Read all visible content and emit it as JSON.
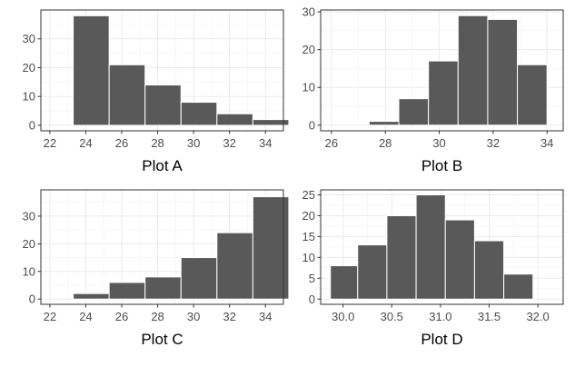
{
  "colors": {
    "bar_fill": "#595959",
    "bar_outline": "#ffffff",
    "panel_border": "#333333",
    "grid": "#ebebeb",
    "background": "#ffffff"
  },
  "chart_data": [
    {
      "type": "bar",
      "xlabel": "Plot A",
      "xlim": [
        21.5,
        35.0
      ],
      "ylim": [
        -1.9,
        40.0
      ],
      "xticks": [
        22,
        24,
        26,
        28,
        30,
        32,
        34
      ],
      "yticks": [
        0,
        10,
        20,
        30
      ],
      "bins": [
        {
          "x0": 23.3,
          "x1": 25.3,
          "count": 38
        },
        {
          "x0": 25.3,
          "x1": 27.3,
          "count": 21
        },
        {
          "x0": 27.3,
          "x1": 29.3,
          "count": 14
        },
        {
          "x0": 29.3,
          "x1": 31.3,
          "count": 8
        },
        {
          "x0": 31.3,
          "x1": 33.3,
          "count": 4
        },
        {
          "x0": 33.3,
          "x1": 35.3,
          "count": 2
        }
      ]
    },
    {
      "type": "bar",
      "xlabel": "Plot B",
      "xlim": [
        25.6,
        34.6
      ],
      "ylim": [
        -1.5,
        30.5
      ],
      "xticks": [
        26,
        28,
        30,
        32,
        34
      ],
      "yticks": [
        0,
        10,
        20,
        30
      ],
      "bins": [
        {
          "x0": 26.2,
          "x1": 27.4,
          "count": 0
        },
        {
          "x0": 27.4,
          "x1": 28.5,
          "count": 1
        },
        {
          "x0": 28.5,
          "x1": 29.6,
          "count": 7
        },
        {
          "x0": 29.6,
          "x1": 30.7,
          "count": 17
        },
        {
          "x0": 30.7,
          "x1": 31.8,
          "count": 29
        },
        {
          "x0": 31.8,
          "x1": 32.9,
          "count": 28
        },
        {
          "x0": 32.9,
          "x1": 34.0,
          "count": 16
        }
      ]
    },
    {
      "type": "bar",
      "xlabel": "Plot C",
      "xlim": [
        21.5,
        35.0
      ],
      "ylim": [
        -1.9,
        39.5
      ],
      "xticks": [
        22,
        24,
        26,
        28,
        30,
        32,
        34
      ],
      "yticks": [
        0,
        10,
        20,
        30
      ],
      "bins": [
        {
          "x0": 23.3,
          "x1": 25.3,
          "count": 2
        },
        {
          "x0": 25.3,
          "x1": 27.3,
          "count": 6
        },
        {
          "x0": 27.3,
          "x1": 29.3,
          "count": 8
        },
        {
          "x0": 29.3,
          "x1": 31.3,
          "count": 15
        },
        {
          "x0": 31.3,
          "x1": 33.3,
          "count": 24
        },
        {
          "x0": 33.3,
          "x1": 35.3,
          "count": 37
        }
      ]
    },
    {
      "type": "bar",
      "xlabel": "Plot D",
      "xlim": [
        29.77,
        32.26
      ],
      "ylim": [
        -1.25,
        26.2
      ],
      "xticks": [
        30.0,
        30.5,
        31.0,
        31.5,
        32.0
      ],
      "xtick_labels": [
        "30.0",
        "30.5",
        "31.0",
        "31.5",
        "32.0"
      ],
      "yticks": [
        0,
        5,
        10,
        15,
        20,
        25
      ],
      "bins": [
        {
          "x0": 29.87,
          "x1": 30.15,
          "count": 8
        },
        {
          "x0": 30.15,
          "x1": 30.45,
          "count": 13
        },
        {
          "x0": 30.45,
          "x1": 30.75,
          "count": 20
        },
        {
          "x0": 30.75,
          "x1": 31.05,
          "count": 25
        },
        {
          "x0": 31.05,
          "x1": 31.35,
          "count": 19
        },
        {
          "x0": 31.35,
          "x1": 31.65,
          "count": 14
        },
        {
          "x0": 31.65,
          "x1": 31.95,
          "count": 6
        }
      ]
    }
  ]
}
